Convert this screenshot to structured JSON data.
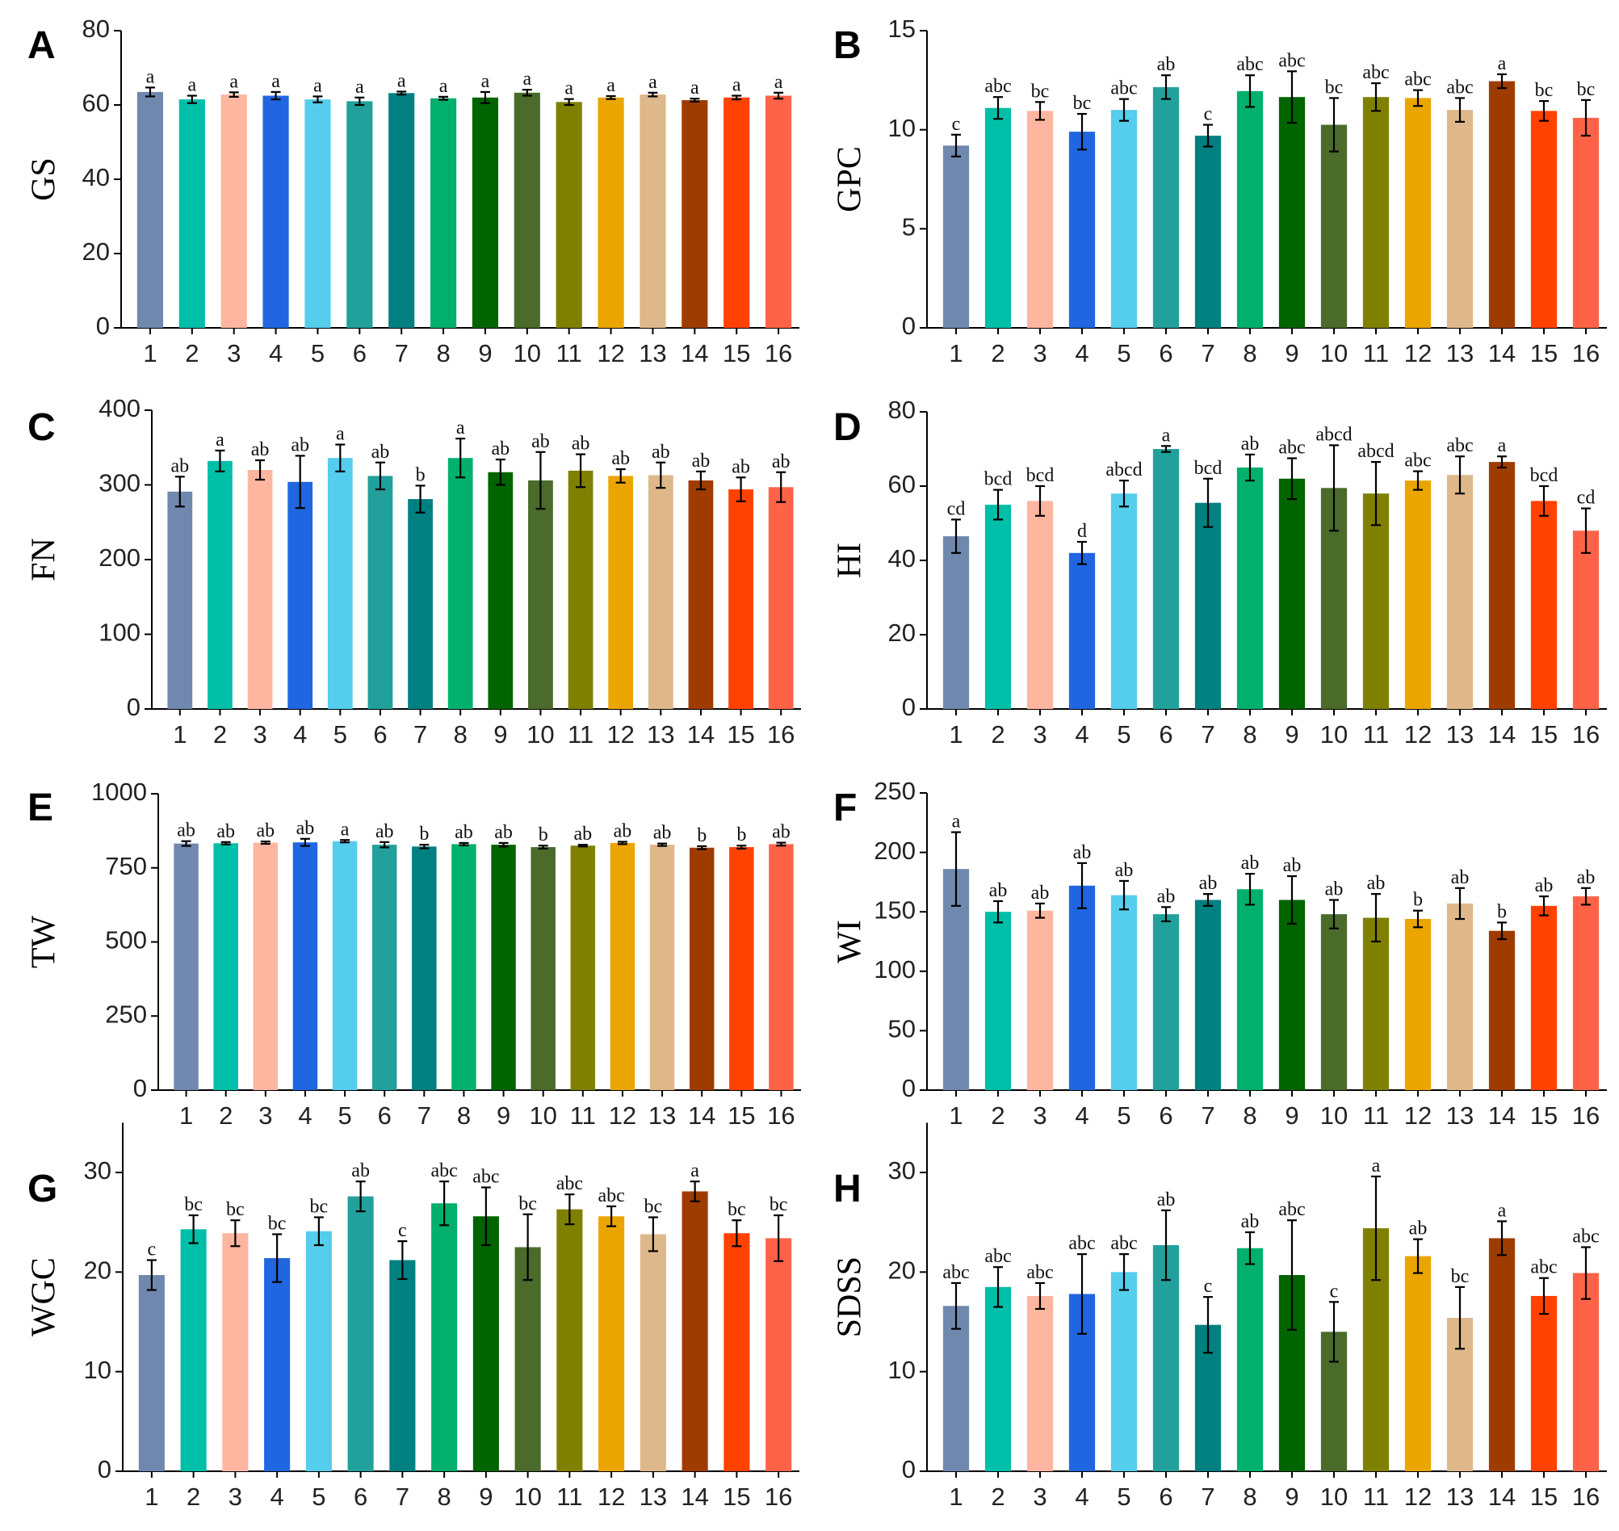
{
  "colors": [
    "#7088AE",
    "#00BFA8",
    "#FFB6A0",
    "#1F66E0",
    "#55CDEC",
    "#22A09C",
    "#008080",
    "#00B06C",
    "#006400",
    "#4A6B2A",
    "#808000",
    "#EBA500",
    "#DEB88A",
    "#9E3C00",
    "#FF4200",
    "#FF6347"
  ],
  "chart_data": [
    {
      "type": "bar",
      "panel": "A",
      "ylabel": "GS",
      "ylim": [
        0,
        80
      ],
      "yticks": [
        0,
        20,
        40,
        60,
        80
      ],
      "categories": [
        "1",
        "2",
        "3",
        "4",
        "5",
        "6",
        "7",
        "8",
        "9",
        "10",
        "11",
        "12",
        "13",
        "14",
        "15",
        "16"
      ],
      "values": [
        63.5,
        61.5,
        62.8,
        62.5,
        61.5,
        61.0,
        63.2,
        61.8,
        62.0,
        63.3,
        60.8,
        62.0,
        62.8,
        61.3,
        62.0,
        62.5
      ],
      "errors": [
        1.2,
        1.0,
        0.6,
        1.0,
        0.8,
        1.0,
        0.4,
        0.4,
        1.5,
        0.8,
        0.8,
        0.4,
        0.5,
        0.4,
        0.5,
        0.8
      ],
      "letters": [
        "a",
        "a",
        "a",
        "a",
        "a",
        "a",
        "a",
        "a",
        "a",
        "a",
        "a",
        "a",
        "a",
        "a",
        "a",
        "a"
      ]
    },
    {
      "type": "bar",
      "panel": "B",
      "ylabel": "GPC",
      "ylim": [
        0,
        15
      ],
      "yticks": [
        0,
        5,
        10,
        15
      ],
      "categories": [
        "1",
        "2",
        "3",
        "4",
        "5",
        "6",
        "7",
        "8",
        "9",
        "10",
        "11",
        "12",
        "13",
        "14",
        "15",
        "16"
      ],
      "values": [
        9.2,
        11.1,
        10.95,
        9.9,
        11.0,
        12.15,
        9.7,
        11.95,
        11.65,
        10.25,
        11.65,
        11.6,
        11.0,
        12.45,
        10.95,
        10.6
      ],
      "errors": [
        0.55,
        0.55,
        0.45,
        0.9,
        0.55,
        0.6,
        0.55,
        0.8,
        1.3,
        1.35,
        0.7,
        0.4,
        0.6,
        0.35,
        0.5,
        0.9
      ],
      "letters": [
        "c",
        "abc",
        "bc",
        "bc",
        "abc",
        "ab",
        "c",
        "abc",
        "abc",
        "bc",
        "abc",
        "abc",
        "abc",
        "a",
        "bc",
        "bc"
      ]
    },
    {
      "type": "bar",
      "panel": "C",
      "ylabel": "FN",
      "ylim": [
        0,
        400
      ],
      "yticks": [
        0,
        100,
        200,
        300,
        400
      ],
      "categories": [
        "1",
        "2",
        "3",
        "4",
        "5",
        "6",
        "7",
        "8",
        "9",
        "10",
        "11",
        "12",
        "13",
        "14",
        "15",
        "16"
      ],
      "values": [
        291,
        332,
        320,
        304,
        336,
        312,
        281,
        336,
        317,
        306,
        319,
        312,
        313,
        306,
        294,
        297
      ],
      "errors": [
        20,
        14,
        13,
        35,
        18,
        18,
        18,
        26,
        17,
        38,
        22,
        9,
        17,
        12,
        16,
        20
      ],
      "letters": [
        "ab",
        "a",
        "ab",
        "ab",
        "a",
        "ab",
        "b",
        "a",
        "ab",
        "ab",
        "ab",
        "ab",
        "ab",
        "ab",
        "ab",
        "ab"
      ]
    },
    {
      "type": "bar",
      "panel": "D",
      "ylabel": "HI",
      "ylim": [
        0,
        80
      ],
      "yticks": [
        0,
        20,
        40,
        60,
        80
      ],
      "categories": [
        "1",
        "2",
        "3",
        "4",
        "5",
        "6",
        "7",
        "8",
        "9",
        "10",
        "11",
        "12",
        "13",
        "14",
        "15",
        "16"
      ],
      "values": [
        46.5,
        55.0,
        56.0,
        42.0,
        58.0,
        70.0,
        55.5,
        65.0,
        62.0,
        59.5,
        58.0,
        61.5,
        63.0,
        66.5,
        56.0,
        48.0
      ],
      "errors": [
        4.5,
        4.0,
        4.0,
        3.0,
        3.5,
        0.8,
        6.5,
        3.5,
        5.5,
        11.5,
        8.5,
        2.5,
        5.0,
        1.5,
        4.0,
        6.0
      ],
      "letters": [
        "cd",
        "bcd",
        "bcd",
        "d",
        "abcd",
        "a",
        "bcd",
        "ab",
        "abc",
        "abcd",
        "abcd",
        "abc",
        "abc",
        "a",
        "bcd",
        "cd"
      ]
    },
    {
      "type": "bar",
      "panel": "E",
      "ylabel": "TW",
      "ylim": [
        0,
        1000
      ],
      "yticks": [
        0,
        250,
        500,
        750,
        1000
      ],
      "categories": [
        "1",
        "2",
        "3",
        "4",
        "5",
        "6",
        "7",
        "8",
        "9",
        "10",
        "11",
        "12",
        "13",
        "14",
        "15",
        "16"
      ],
      "values": [
        832,
        833,
        835,
        836,
        840,
        828,
        822,
        830,
        828,
        820,
        825,
        834,
        828,
        818,
        820,
        830
      ],
      "errors": [
        8,
        4,
        4,
        12,
        4,
        9,
        6,
        4,
        6,
        5,
        3,
        4,
        4,
        5,
        5,
        5
      ],
      "letters": [
        "ab",
        "ab",
        "ab",
        "ab",
        "a",
        "ab",
        "b",
        "ab",
        "ab",
        "b",
        "ab",
        "ab",
        "ab",
        "b",
        "b",
        "ab"
      ]
    },
    {
      "type": "bar",
      "panel": "F",
      "ylabel": "WI",
      "ylim": [
        0,
        250
      ],
      "yticks": [
        0,
        50,
        100,
        150,
        200,
        250
      ],
      "categories": [
        "1",
        "2",
        "3",
        "4",
        "5",
        "6",
        "7",
        "8",
        "9",
        "10",
        "11",
        "12",
        "13",
        "14",
        "15",
        "16"
      ],
      "values": [
        186,
        150,
        151,
        172,
        164,
        148,
        160,
        169,
        160,
        148,
        145,
        144,
        157,
        134,
        155,
        163
      ],
      "errors": [
        31,
        9,
        6,
        19,
        12,
        6,
        5,
        13,
        20,
        12,
        20,
        7,
        13,
        7,
        8,
        7
      ],
      "letters": [
        "a",
        "ab",
        "ab",
        "ab",
        "ab",
        "ab",
        "ab",
        "ab",
        "ab",
        "ab",
        "ab",
        "b",
        "ab",
        "b",
        "ab",
        "ab"
      ]
    },
    {
      "type": "bar",
      "panel": "G",
      "ylabel": "WGC",
      "ylim": [
        0,
        35
      ],
      "yticks": [
        0,
        10,
        20,
        30
      ],
      "categories": [
        "1",
        "2",
        "3",
        "4",
        "5",
        "6",
        "7",
        "8",
        "9",
        "10",
        "11",
        "12",
        "13",
        "14",
        "15",
        "16"
      ],
      "values": [
        19.7,
        24.3,
        23.9,
        21.4,
        24.1,
        27.6,
        21.2,
        26.9,
        25.6,
        22.5,
        26.3,
        25.6,
        23.8,
        28.1,
        23.9,
        23.4
      ],
      "errors": [
        1.5,
        1.4,
        1.3,
        2.4,
        1.4,
        1.5,
        1.9,
        2.2,
        2.9,
        3.3,
        1.5,
        1.0,
        1.7,
        1.0,
        1.3,
        2.3
      ],
      "letters": [
        "c",
        "bc",
        "bc",
        "bc",
        "bc",
        "ab",
        "c",
        "abc",
        "abc",
        "bc",
        "abc",
        "abc",
        "bc",
        "a",
        "bc",
        "bc"
      ]
    },
    {
      "type": "bar",
      "panel": "H",
      "ylabel": "SDSS",
      "ylim": [
        0,
        35
      ],
      "yticks": [
        0,
        10,
        20,
        30
      ],
      "categories": [
        "1",
        "2",
        "3",
        "4",
        "5",
        "6",
        "7",
        "8",
        "9",
        "10",
        "11",
        "12",
        "13",
        "14",
        "15",
        "16"
      ],
      "values": [
        16.6,
        18.5,
        17.6,
        17.8,
        20.0,
        22.7,
        14.7,
        22.4,
        19.7,
        14.0,
        24.4,
        21.6,
        15.4,
        23.4,
        17.6,
        19.9
      ],
      "errors": [
        2.3,
        2.0,
        1.3,
        4.0,
        1.8,
        3.5,
        2.8,
        1.6,
        5.5,
        3.0,
        5.2,
        1.7,
        3.1,
        1.7,
        1.8,
        2.6
      ],
      "letters": [
        "abc",
        "abc",
        "abc",
        "abc",
        "abc",
        "ab",
        "c",
        "ab",
        "abc",
        "c",
        "a",
        "ab",
        "bc",
        "a",
        "abc",
        "abc"
      ]
    }
  ]
}
